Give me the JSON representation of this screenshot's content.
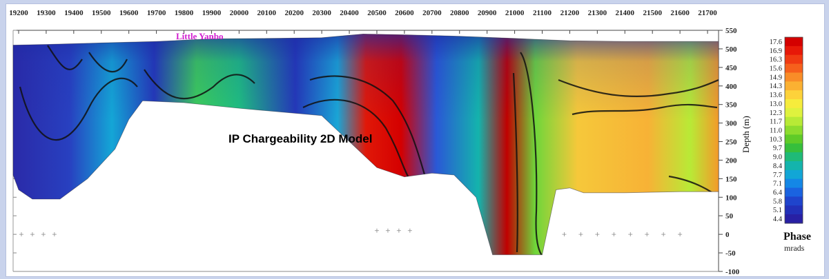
{
  "chart_data": {
    "type": "heatmap",
    "title": "IP Chargeability 2D Model",
    "annotation": "Little Yanbo",
    "x_ticks": [
      19200,
      19300,
      19400,
      19500,
      19600,
      19700,
      19800,
      19900,
      20000,
      20100,
      20200,
      20300,
      20400,
      20500,
      20600,
      20700,
      20800,
      20900,
      21000,
      21100,
      21200,
      21300,
      21400,
      21500,
      21600,
      21700
    ],
    "xlim": [
      19180,
      21740
    ],
    "y_ticks": [
      550,
      500,
      450,
      400,
      350,
      300,
      250,
      200,
      150,
      100,
      50,
      0,
      -50,
      -100
    ],
    "ylim": [
      -100,
      550
    ],
    "ylabel": "Depth (m)",
    "colorbar": {
      "title": "Phase",
      "unit": "mrads",
      "levels": [
        17.6,
        16.9,
        16.3,
        15.6,
        14.9,
        14.3,
        13.6,
        13.0,
        12.3,
        11.7,
        11.0,
        10.3,
        9.7,
        9.0,
        8.4,
        7.7,
        7.1,
        6.4,
        5.8,
        5.1,
        4.4
      ],
      "colors": [
        "#d40000",
        "#e71808",
        "#f03a12",
        "#f6601c",
        "#f98d28",
        "#fbb132",
        "#fdd23a",
        "#f6ec3c",
        "#dff23e",
        "#b8ea36",
        "#8ddc2e",
        "#5fcb28",
        "#36bf3c",
        "#1fba78",
        "#14b4ac",
        "#12a6d6",
        "#1487e6",
        "#1a63e0",
        "#1f44cc",
        "#2230b8",
        "#2820a4"
      ]
    }
  }
}
